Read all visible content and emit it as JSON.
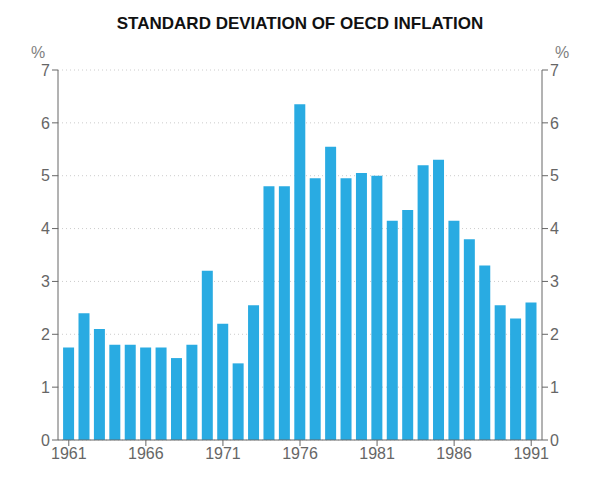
{
  "chart_data": {
    "type": "bar",
    "title": "STANDARD DEVIATION OF OECD INFLATION",
    "x": [
      1961,
      1962,
      1963,
      1964,
      1965,
      1966,
      1967,
      1968,
      1969,
      1970,
      1971,
      1972,
      1973,
      1974,
      1975,
      1976,
      1977,
      1978,
      1979,
      1980,
      1981,
      1982,
      1983,
      1984,
      1985,
      1986,
      1987,
      1988,
      1989,
      1990,
      1991
    ],
    "values": [
      1.75,
      2.4,
      2.1,
      1.8,
      1.8,
      1.75,
      1.75,
      1.55,
      1.8,
      3.2,
      2.2,
      1.45,
      2.55,
      4.8,
      4.8,
      6.35,
      4.95,
      5.55,
      4.95,
      5.05,
      5.0,
      4.15,
      4.35,
      5.2,
      5.3,
      4.15,
      3.8,
      3.3,
      2.55,
      2.3,
      2.6
    ],
    "color": "#29ABE2",
    "xlim": [
      1960.3,
      1991.7
    ],
    "xticks": [
      1961,
      1966,
      1971,
      1976,
      1981,
      1986,
      1991
    ],
    "ylabel": "%",
    "y2label": "%",
    "ylim": [
      0,
      7
    ],
    "yticks": [
      0,
      1,
      2,
      3,
      4,
      5,
      6,
      7
    ],
    "y2lim": [
      0,
      7
    ],
    "y2ticks": [
      0,
      1,
      2,
      3,
      4,
      5,
      6,
      7
    ],
    "grid": true
  }
}
